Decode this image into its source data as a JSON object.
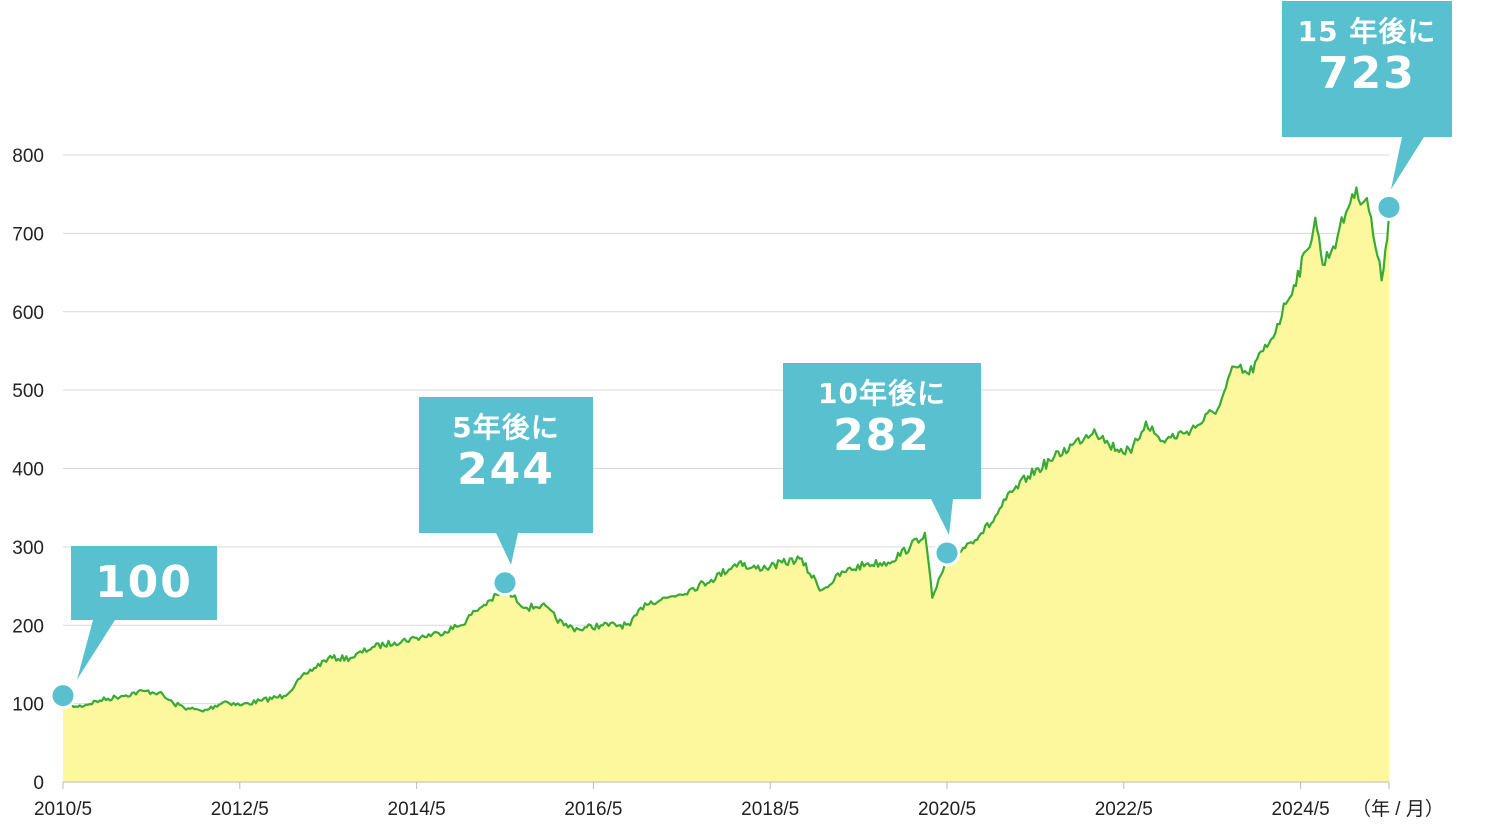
{
  "chart_data": {
    "type": "area",
    "unit_label": "（年 / 月）",
    "ylim": [
      0,
      800
    ],
    "yticks": [
      0,
      100,
      200,
      300,
      400,
      500,
      600,
      700,
      800
    ],
    "xlim": [
      "2010-05",
      "2025-05"
    ],
    "xticks": [
      {
        "date": "2010-05",
        "label": "2010/5"
      },
      {
        "date": "2012-05",
        "label": "2012/5"
      },
      {
        "date": "2014-05",
        "label": "2014/5"
      },
      {
        "date": "2016-05",
        "label": "2016/5"
      },
      {
        "date": "2018-05",
        "label": "2018/5"
      },
      {
        "date": "2020-05",
        "label": "2020/5"
      },
      {
        "date": "2022-05",
        "label": "2022/5"
      },
      {
        "date": "2024-05",
        "label": "2024/5"
      }
    ],
    "grid": true,
    "series": [
      {
        "line_color": "#3aaa35",
        "fill_color": "#fdf89d",
        "points": [
          [
            "2010-05",
            100
          ],
          [
            "2010-07",
            96
          ],
          [
            "2010-10",
            104
          ],
          [
            "2011-01",
            110
          ],
          [
            "2011-04",
            116
          ],
          [
            "2011-06",
            114
          ],
          [
            "2011-08",
            100
          ],
          [
            "2011-10",
            94
          ],
          [
            "2011-12",
            90
          ],
          [
            "2012-03",
            103
          ],
          [
            "2012-05",
            98
          ],
          [
            "2012-08",
            104
          ],
          [
            "2012-11",
            110
          ],
          [
            "2013-02",
            138
          ],
          [
            "2013-05",
            158
          ],
          [
            "2013-08",
            158
          ],
          [
            "2013-11",
            172
          ],
          [
            "2014-02",
            178
          ],
          [
            "2014-05",
            184
          ],
          [
            "2014-08",
            190
          ],
          [
            "2014-11",
            200
          ],
          [
            "2015-01",
            218
          ],
          [
            "2015-03",
            232
          ],
          [
            "2015-05",
            244
          ],
          [
            "2015-08",
            222
          ],
          [
            "2015-10",
            226
          ],
          [
            "2016-01",
            200
          ],
          [
            "2016-03",
            195
          ],
          [
            "2016-06",
            200
          ],
          [
            "2016-10",
            200
          ],
          [
            "2016-12",
            228
          ],
          [
            "2017-03",
            235
          ],
          [
            "2017-06",
            245
          ],
          [
            "2017-09",
            258
          ],
          [
            "2018-01",
            282
          ],
          [
            "2018-02",
            272
          ],
          [
            "2018-05",
            275
          ],
          [
            "2018-09",
            285
          ],
          [
            "2018-12",
            245
          ],
          [
            "2019-03",
            268
          ],
          [
            "2019-06",
            278
          ],
          [
            "2019-09",
            280
          ],
          [
            "2019-12",
            300
          ],
          [
            "2020-02",
            318
          ],
          [
            "2020-03",
            235
          ],
          [
            "2020-05",
            282
          ],
          [
            "2020-08",
            305
          ],
          [
            "2020-11",
            330
          ],
          [
            "2021-01",
            360
          ],
          [
            "2021-04",
            390
          ],
          [
            "2021-07",
            410
          ],
          [
            "2021-10",
            430
          ],
          [
            "2022-01",
            450
          ],
          [
            "2022-03",
            430
          ],
          [
            "2022-06",
            420
          ],
          [
            "2022-08",
            460
          ],
          [
            "2022-10",
            435
          ],
          [
            "2023-01",
            445
          ],
          [
            "2023-03",
            455
          ],
          [
            "2023-06",
            480
          ],
          [
            "2023-08",
            530
          ],
          [
            "2023-10",
            520
          ],
          [
            "2024-01",
            565
          ],
          [
            "2024-03",
            610
          ],
          [
            "2024-06",
            680
          ],
          [
            "2024-07",
            720
          ],
          [
            "2024-08",
            660
          ],
          [
            "2024-10",
            695
          ],
          [
            "2024-12",
            750
          ],
          [
            "2025-02",
            745
          ],
          [
            "2025-04",
            640
          ],
          [
            "2025-05",
            723
          ]
        ]
      }
    ],
    "annotations": [
      {
        "date": "2010-05",
        "value": 100,
        "prefix": "",
        "text": "100"
      },
      {
        "date": "2015-05",
        "value": 244,
        "prefix": "5年後に",
        "text": "244"
      },
      {
        "date": "2020-05",
        "value": 282,
        "prefix": "10年後に",
        "text": "282"
      },
      {
        "date": "2025-05",
        "value": 723,
        "prefix": "15 年後に",
        "text": "723"
      }
    ],
    "marker_color": "#58c0cf",
    "callout_color": "#58c0cf"
  }
}
